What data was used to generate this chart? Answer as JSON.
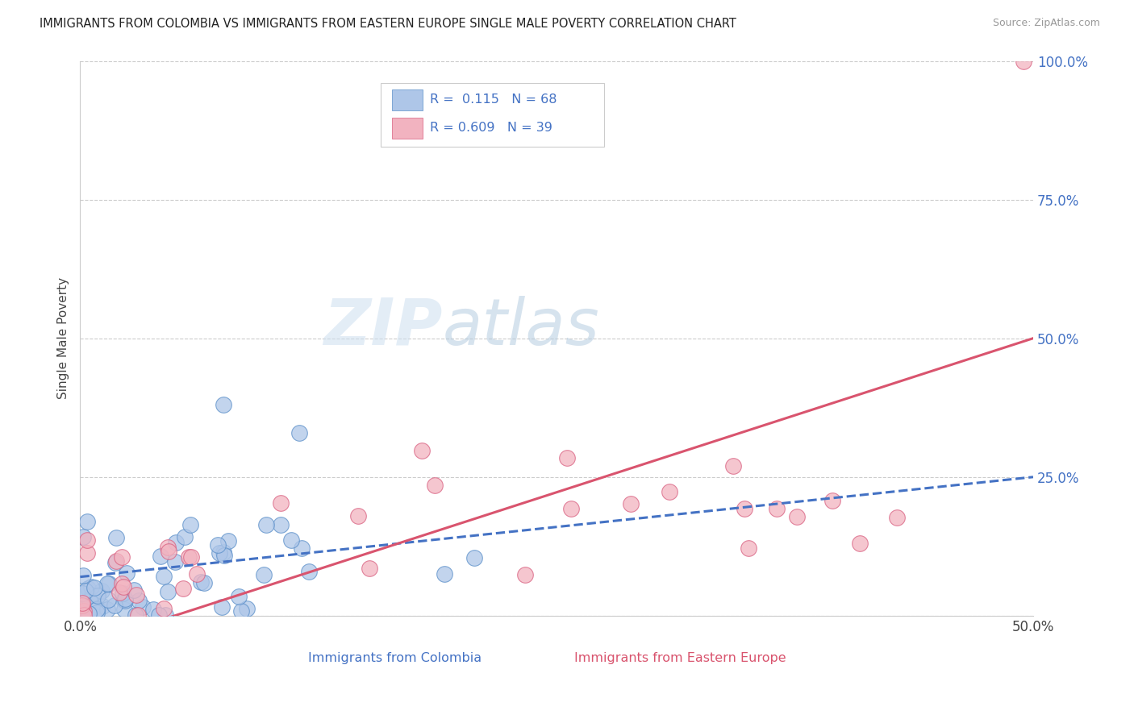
{
  "title": "IMMIGRANTS FROM COLOMBIA VS IMMIGRANTS FROM EASTERN EUROPE SINGLE MALE POVERTY CORRELATION CHART",
  "source": "Source: ZipAtlas.com",
  "ylabel": "Single Male Poverty",
  "xlabel_colombia": "Immigrants from Colombia",
  "xlabel_eastern": "Immigrants from Eastern Europe",
  "xlim": [
    0.0,
    0.5
  ],
  "ylim": [
    0.0,
    1.0
  ],
  "colombia_R": 0.115,
  "colombia_N": 68,
  "eastern_R": 0.609,
  "eastern_N": 39,
  "colombia_color": "#aec6e8",
  "colombia_edge_color": "#5b8fc9",
  "colombia_line_color": "#4472c4",
  "eastern_color": "#f2b3c0",
  "eastern_edge_color": "#d96080",
  "eastern_line_color": "#d9546e",
  "background_color": "#ffffff",
  "grid_color": "#cccccc",
  "right_tick_color": "#4472c4",
  "watermark_zip_color": "#ccdff0",
  "watermark_atlas_color": "#b8d4e8",
  "col_line_intercept": 0.07,
  "col_line_slope": 0.36,
  "eas_line_intercept": -0.055,
  "eas_line_slope": 1.11
}
